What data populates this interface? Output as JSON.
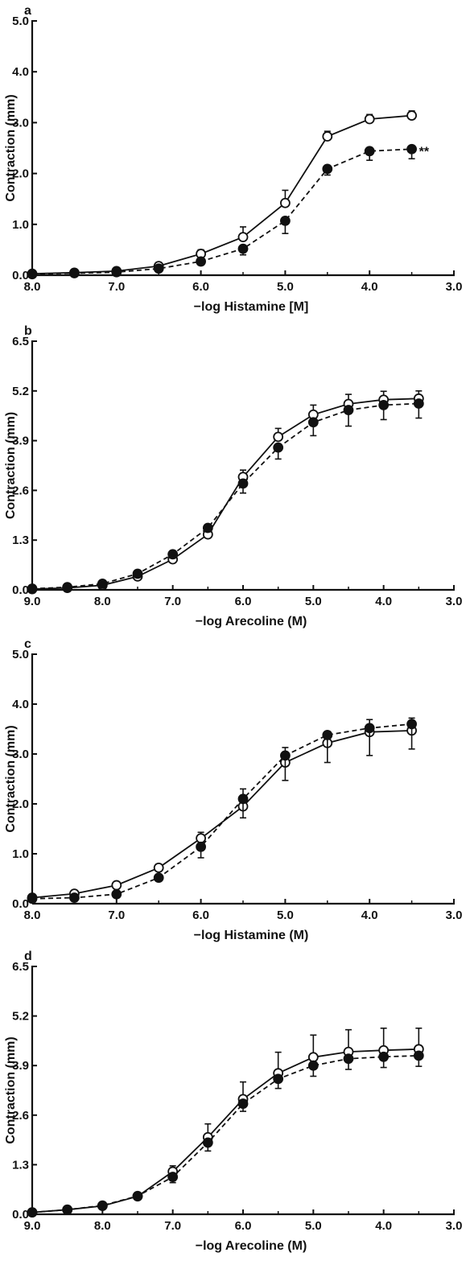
{
  "chart_data": [
    {
      "type": "line",
      "panel": "a",
      "xlabel": "−log Histamine [M]",
      "ylabel": "Contraction (mm)",
      "xlim": [
        8.0,
        3.0
      ],
      "ylim": [
        0,
        5.0
      ],
      "x_inverted": true,
      "xticks": [
        8.0,
        7.0,
        6.0,
        5.0,
        4.0,
        3.0
      ],
      "xtick_labels": [
        "8.0",
        "7.0",
        "6.0",
        "5.0",
        "4.0",
        "3.0"
      ],
      "yticks": [
        0,
        1.0,
        2.0,
        3.0,
        4.0,
        5.0
      ],
      "ytick_labels": [
        "0.0",
        "1.0",
        "2.0",
        "3.0",
        "4.0",
        "5.0"
      ],
      "annotation": "**",
      "series": [
        {
          "marker": "open-circle",
          "line": "solid",
          "x": [
            8.0,
            7.5,
            7.0,
            6.5,
            6.0,
            5.5,
            5.0,
            4.5,
            4.0,
            3.5
          ],
          "y": [
            0.03,
            0.05,
            0.08,
            0.18,
            0.42,
            0.75,
            1.42,
            2.73,
            3.07,
            3.14
          ],
          "err": [
            0.02,
            0.03,
            0.04,
            0.06,
            0.08,
            0.2,
            0.25,
            0.1,
            0.09,
            0.09
          ]
        },
        {
          "marker": "filled-circle",
          "line": "dashed",
          "x": [
            8.0,
            7.5,
            7.0,
            6.5,
            6.0,
            5.5,
            5.0,
            4.5,
            4.0,
            3.5
          ],
          "y": [
            0.02,
            0.04,
            0.06,
            0.13,
            0.27,
            0.52,
            1.07,
            2.09,
            2.44,
            2.48
          ],
          "err": [
            0.02,
            0.03,
            0.04,
            0.05,
            0.07,
            0.12,
            0.25,
            0.12,
            0.18,
            0.19
          ]
        }
      ]
    },
    {
      "type": "line",
      "panel": "b",
      "xlabel": "−log Arecoline (M)",
      "ylabel": "Contraction (mm)",
      "xlim": [
        9.0,
        3.0
      ],
      "ylim": [
        0,
        6.5
      ],
      "x_inverted": true,
      "xticks": [
        9.0,
        8.0,
        7.0,
        6.0,
        5.0,
        4.0,
        3.0
      ],
      "xtick_labels": [
        "9.0",
        "8.0",
        "7.0",
        "6.0",
        "5.0",
        "4.0",
        "3.0"
      ],
      "yticks": [
        0,
        1.3,
        2.6,
        3.9,
        5.2,
        6.5
      ],
      "ytick_labels": [
        "0.0",
        "1.3",
        "2.6",
        "3.9",
        "5.2",
        "6.5"
      ],
      "series": [
        {
          "marker": "open-circle",
          "line": "solid",
          "x": [
            9.0,
            8.5,
            8.0,
            7.5,
            7.0,
            6.5,
            6.0,
            5.5,
            5.0,
            4.5,
            4.0,
            3.5
          ],
          "y": [
            0.02,
            0.05,
            0.12,
            0.35,
            0.8,
            1.45,
            2.95,
            4.0,
            4.58,
            4.86,
            4.97,
            5.0
          ],
          "err": [
            0.02,
            0.03,
            0.05,
            0.08,
            0.1,
            0.1,
            0.18,
            0.22,
            0.25,
            0.25,
            0.22,
            0.2
          ]
        },
        {
          "marker": "filled-circle",
          "line": "dashed",
          "x": [
            9.0,
            8.5,
            8.0,
            7.5,
            7.0,
            6.5,
            6.0,
            5.5,
            5.0,
            4.5,
            4.0,
            3.5
          ],
          "y": [
            0.03,
            0.07,
            0.16,
            0.42,
            0.93,
            1.62,
            2.78,
            3.72,
            4.38,
            4.7,
            4.83,
            4.87
          ],
          "err": [
            0.02,
            0.03,
            0.05,
            0.08,
            0.1,
            0.1,
            0.25,
            0.3,
            0.35,
            0.42,
            0.38,
            0.38
          ]
        }
      ]
    },
    {
      "type": "line",
      "panel": "c",
      "xlabel": "−log Histamine (M)",
      "ylabel": "Contraction (mm)",
      "xlim": [
        8.0,
        3.0
      ],
      "ylim": [
        0,
        5.0
      ],
      "x_inverted": true,
      "xticks": [
        8.0,
        7.0,
        6.0,
        5.0,
        4.0,
        3.0
      ],
      "xtick_labels": [
        "8.0",
        "7.0",
        "6.0",
        "5.0",
        "4.0",
        "3.0"
      ],
      "yticks": [
        0,
        1.0,
        2.0,
        3.0,
        4.0,
        5.0
      ],
      "ytick_labels": [
        "0.0",
        "1.0",
        "2.0",
        "3.0",
        "4.0",
        "5.0"
      ],
      "series": [
        {
          "marker": "open-circle",
          "line": "solid",
          "x": [
            8.0,
            7.5,
            7.0,
            6.5,
            6.0,
            5.5,
            5.0,
            4.5,
            4.0,
            3.5
          ],
          "y": [
            0.12,
            0.2,
            0.37,
            0.72,
            1.31,
            1.95,
            2.83,
            3.22,
            3.44,
            3.47
          ],
          "err": [
            0.04,
            0.04,
            0.05,
            0.07,
            0.12,
            0.35,
            0.3,
            0.22,
            0.25,
            0.25
          ]
        },
        {
          "marker": "filled-circle",
          "line": "dashed",
          "x": [
            8.0,
            7.5,
            7.0,
            6.5,
            6.0,
            5.5,
            5.0,
            4.5,
            4.0,
            3.5
          ],
          "y": [
            0.1,
            0.12,
            0.19,
            0.52,
            1.14,
            2.1,
            2.97,
            3.38,
            3.52,
            3.6
          ],
          "err": [
            0.04,
            0.04,
            0.05,
            0.07,
            0.22,
            0.38,
            0.5,
            0.55,
            0.55,
            0.5
          ]
        }
      ]
    },
    {
      "type": "line",
      "panel": "d",
      "xlabel": "−log Arecoline (M)",
      "ylabel": "Contraction (mm)",
      "xlim": [
        9.0,
        3.0
      ],
      "ylim": [
        0,
        6.5
      ],
      "x_inverted": true,
      "xticks": [
        9.0,
        8.0,
        7.0,
        6.0,
        5.0,
        4.0,
        3.0
      ],
      "xtick_labels": [
        "9.0",
        "8.0",
        "7.0",
        "6.0",
        "5.0",
        "4.0",
        "3.0"
      ],
      "yticks": [
        0,
        1.3,
        2.6,
        3.9,
        5.2,
        6.5
      ],
      "ytick_labels": [
        "0.0",
        "1.3",
        "2.6",
        "3.9",
        "5.2",
        "6.5"
      ],
      "series": [
        {
          "marker": "open-circle",
          "line": "solid",
          "x": [
            9.0,
            8.5,
            8.0,
            7.5,
            7.0,
            6.5,
            6.0,
            5.5,
            5.0,
            4.5,
            4.0,
            3.5
          ],
          "y": [
            0.05,
            0.12,
            0.22,
            0.47,
            1.12,
            2.02,
            3.02,
            3.7,
            4.12,
            4.26,
            4.3,
            4.33
          ],
          "err": [
            0.03,
            0.04,
            0.06,
            0.08,
            0.15,
            0.35,
            0.45,
            0.55,
            0.58,
            0.58,
            0.58,
            0.55
          ]
        },
        {
          "marker": "filled-circle",
          "line": "dashed",
          "x": [
            9.0,
            8.5,
            8.0,
            7.5,
            7.0,
            6.5,
            6.0,
            5.5,
            5.0,
            4.5,
            4.0,
            3.5
          ],
          "y": [
            0.05,
            0.12,
            0.23,
            0.48,
            0.98,
            1.88,
            2.9,
            3.55,
            3.9,
            4.08,
            4.13,
            4.16
          ],
          "err": [
            0.03,
            0.04,
            0.06,
            0.08,
            0.15,
            0.22,
            0.2,
            0.25,
            0.28,
            0.28,
            0.28,
            0.28
          ]
        }
      ]
    }
  ]
}
